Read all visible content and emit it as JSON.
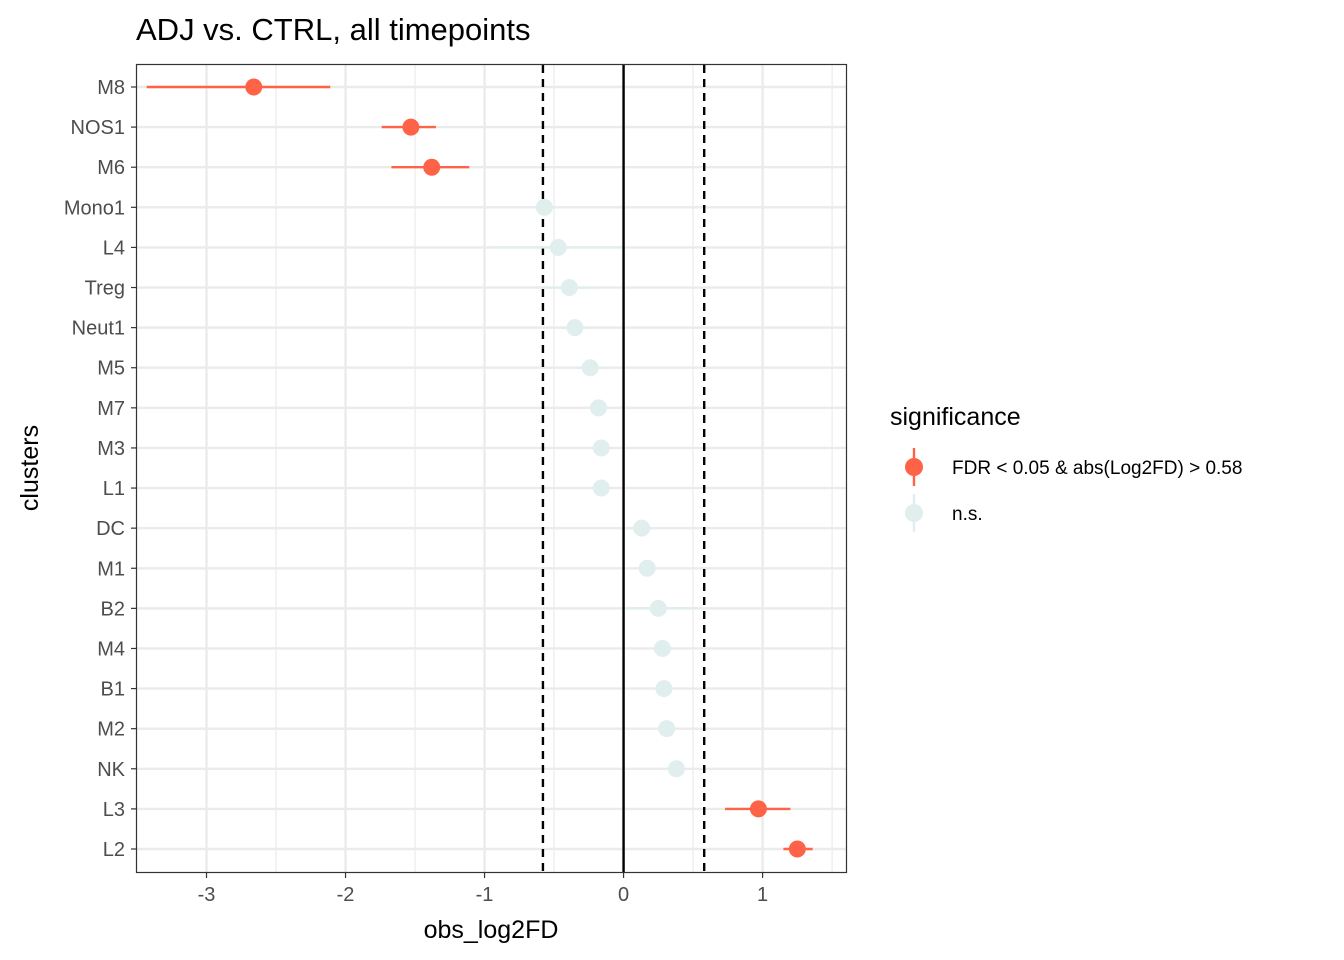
{
  "chart_data": {
    "type": "scatter",
    "title": "ADJ vs. CTRL, all timepoints",
    "xlabel": "obs_log2FD",
    "ylabel": "clusters",
    "xlim": [
      -3.5,
      1.6
    ],
    "x_ticks": [
      -3,
      -2,
      -1,
      0,
      1
    ],
    "x_tick_labels": [
      "-3",
      "-2",
      "-1",
      "0",
      "1"
    ],
    "reference_lines": [
      {
        "x": -0.58,
        "style": "dashed"
      },
      {
        "x": 0,
        "style": "solid"
      },
      {
        "x": 0.58,
        "style": "dashed"
      }
    ],
    "grid": true,
    "legend": {
      "title": "significance",
      "position": "right",
      "entries": [
        {
          "key": "sig",
          "label": "FDR < 0.05 & abs(Log2FD) > 0.58",
          "color": "#FF6347"
        },
        {
          "key": "ns",
          "label": "n.s.",
          "color": "#E0EEEE"
        }
      ]
    },
    "points": [
      {
        "cluster": "M8",
        "x": -2.66,
        "lo": -3.43,
        "hi": -2.11,
        "sig": "sig"
      },
      {
        "cluster": "NOS1",
        "x": -1.53,
        "lo": -1.74,
        "hi": -1.35,
        "sig": "sig"
      },
      {
        "cluster": "M6",
        "x": -1.38,
        "lo": -1.67,
        "hi": -1.11,
        "sig": "sig"
      },
      {
        "cluster": "Mono1",
        "x": -0.57,
        "lo": -0.65,
        "hi": -0.5,
        "sig": "ns"
      },
      {
        "cluster": "L4",
        "x": -0.47,
        "lo": -0.95,
        "hi": -0.02,
        "sig": "ns"
      },
      {
        "cluster": "Treg",
        "x": -0.39,
        "lo": -0.6,
        "hi": -0.19,
        "sig": "ns"
      },
      {
        "cluster": "Neut1",
        "x": -0.35,
        "lo": -0.45,
        "hi": -0.25,
        "sig": "ns"
      },
      {
        "cluster": "M5",
        "x": -0.24,
        "lo": -0.34,
        "hi": -0.13,
        "sig": "ns"
      },
      {
        "cluster": "M7",
        "x": -0.18,
        "lo": -0.24,
        "hi": -0.12,
        "sig": "ns"
      },
      {
        "cluster": "M3",
        "x": -0.16,
        "lo": -0.22,
        "hi": -0.1,
        "sig": "ns"
      },
      {
        "cluster": "L1",
        "x": -0.16,
        "lo": -0.22,
        "hi": -0.1,
        "sig": "ns"
      },
      {
        "cluster": "DC",
        "x": 0.13,
        "lo": 0.04,
        "hi": 0.21,
        "sig": "ns"
      },
      {
        "cluster": "M1",
        "x": 0.17,
        "lo": 0.11,
        "hi": 0.23,
        "sig": "ns"
      },
      {
        "cluster": "B2",
        "x": 0.25,
        "lo": 0.02,
        "hi": 0.53,
        "sig": "ns"
      },
      {
        "cluster": "M4",
        "x": 0.28,
        "lo": 0.22,
        "hi": 0.35,
        "sig": "ns"
      },
      {
        "cluster": "B1",
        "x": 0.29,
        "lo": 0.23,
        "hi": 0.34,
        "sig": "ns"
      },
      {
        "cluster": "M2",
        "x": 0.31,
        "lo": 0.25,
        "hi": 0.38,
        "sig": "ns"
      },
      {
        "cluster": "NK",
        "x": 0.38,
        "lo": 0.32,
        "hi": 0.44,
        "sig": "ns"
      },
      {
        "cluster": "L3",
        "x": 0.97,
        "lo": 0.73,
        "hi": 1.2,
        "sig": "sig"
      },
      {
        "cluster": "L2",
        "x": 1.25,
        "lo": 1.15,
        "hi": 1.36,
        "sig": "sig"
      }
    ]
  }
}
